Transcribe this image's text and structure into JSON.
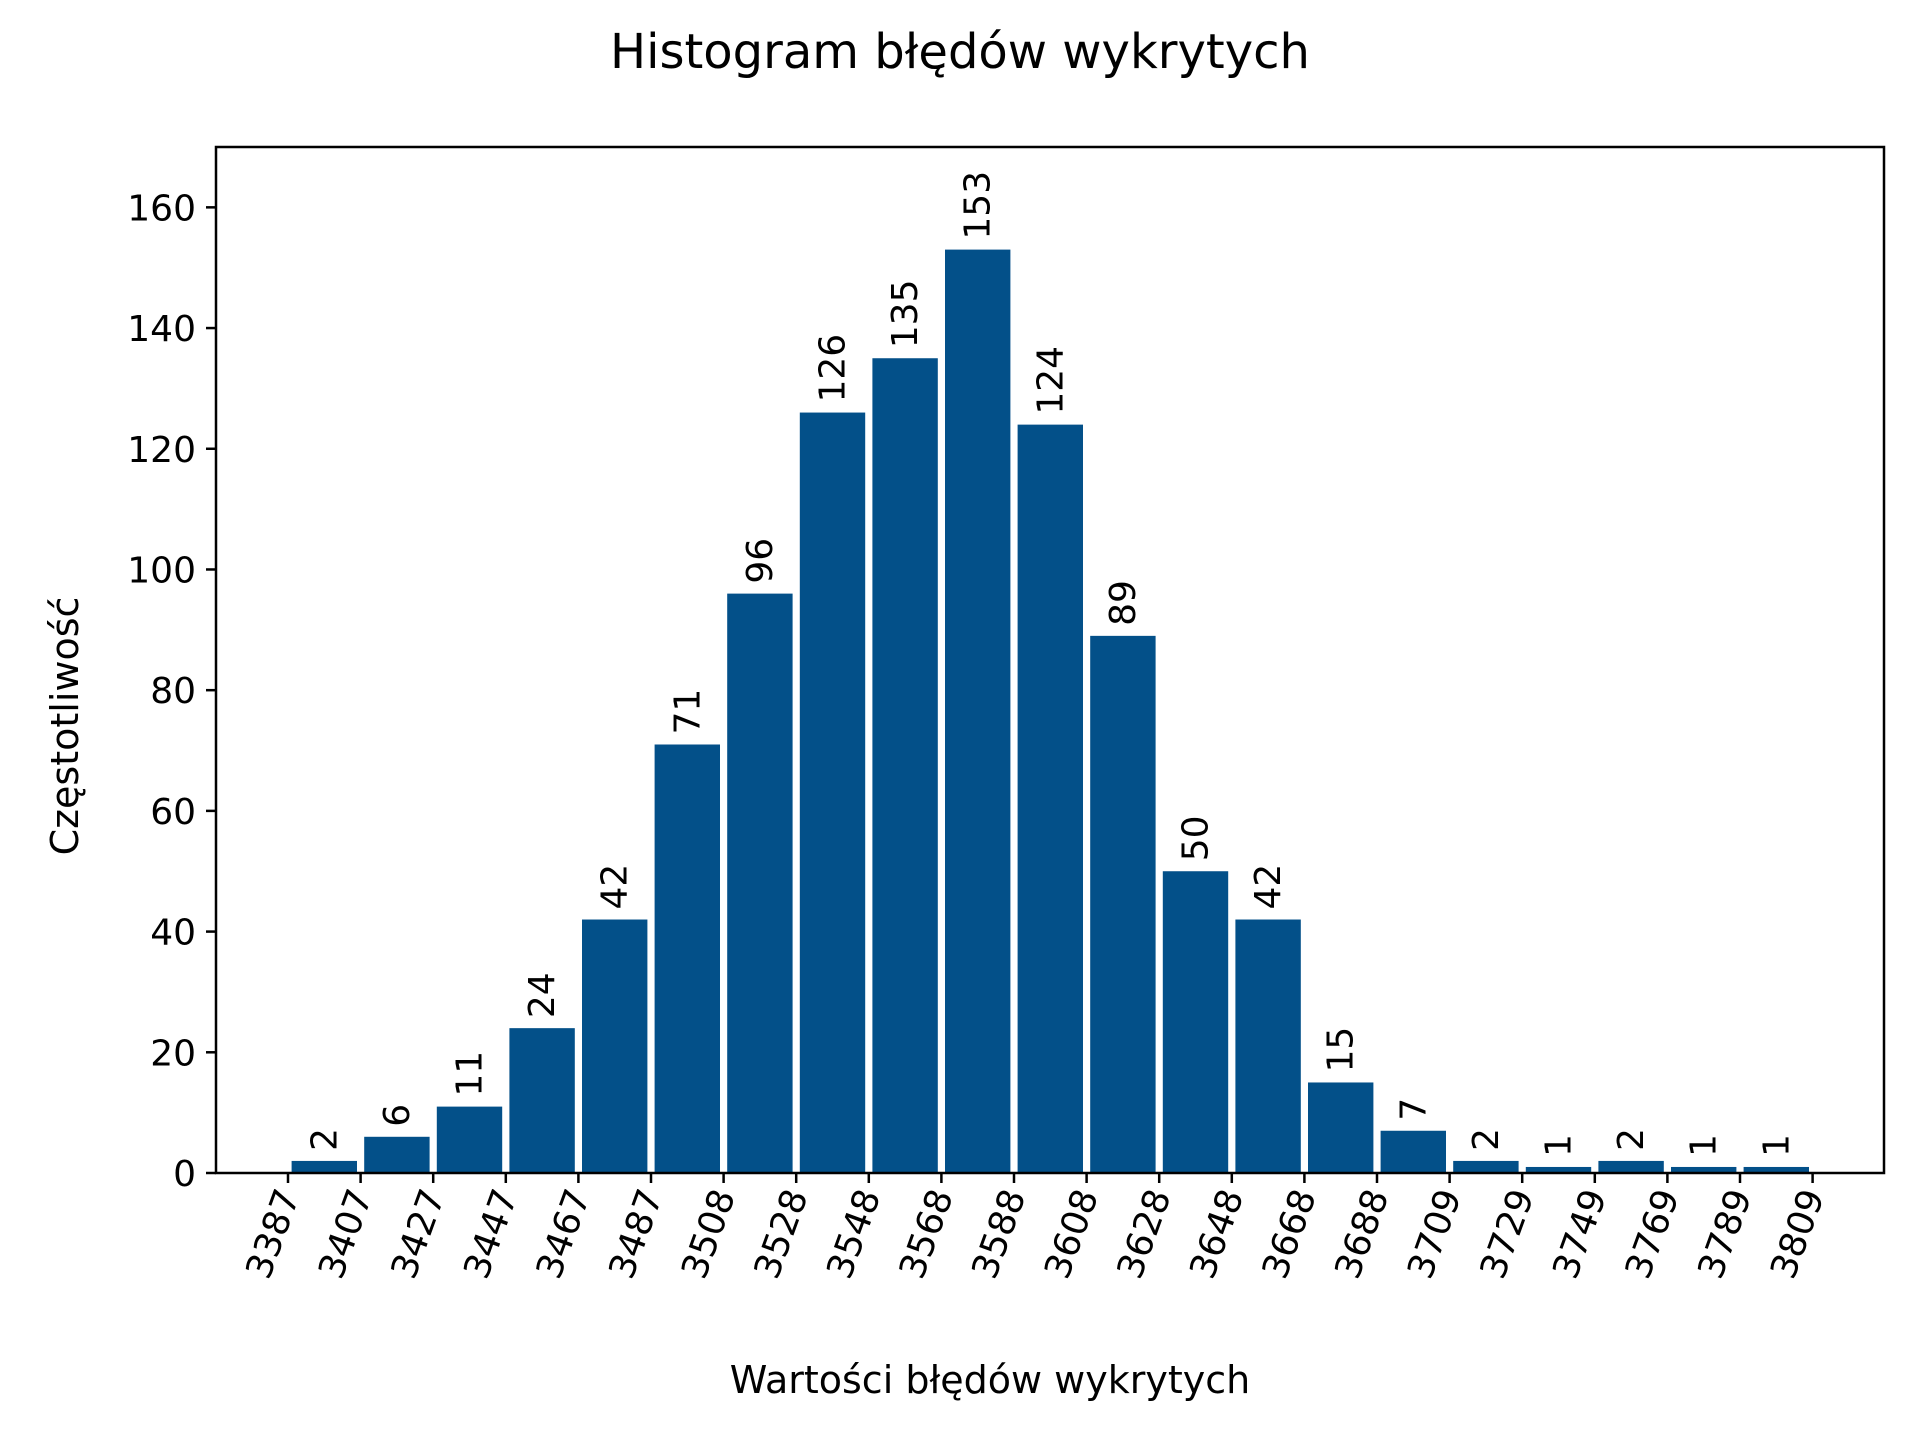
{
  "chart_data": {
    "type": "bar",
    "title": "Histogram błędów wykrytych",
    "xlabel": "Wartości błędów wykrytych",
    "ylabel": "Częstotliwość",
    "bin_edges": [
      "3387",
      "3407",
      "3427",
      "3447",
      "3467",
      "3487",
      "3508",
      "3528",
      "3548",
      "3568",
      "3588",
      "3608",
      "3628",
      "3648",
      "3668",
      "3688",
      "3709",
      "3729",
      "3749",
      "3769",
      "3789",
      "3809"
    ],
    "values": [
      2,
      6,
      11,
      24,
      42,
      71,
      96,
      126,
      135,
      153,
      124,
      89,
      50,
      42,
      15,
      7,
      2,
      1,
      2,
      1,
      1
    ],
    "ylim": [
      0,
      170
    ],
    "yticks": [
      0,
      20,
      40,
      60,
      80,
      100,
      120,
      140,
      160
    ],
    "bar_color": "#035089",
    "grid": false,
    "legend": "none"
  }
}
